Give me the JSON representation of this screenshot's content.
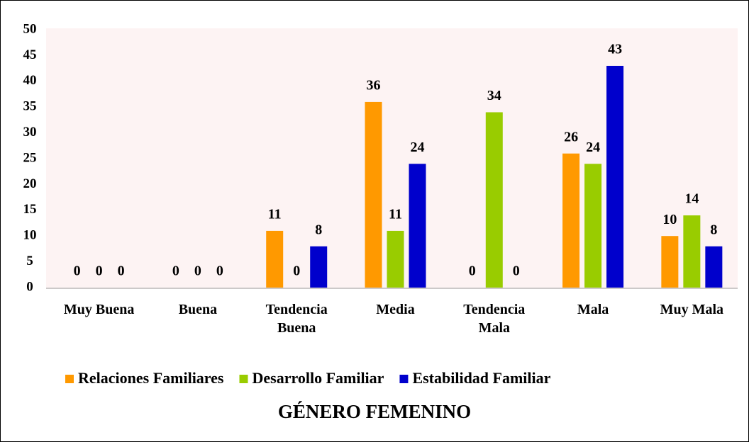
{
  "chart_data": {
    "type": "bar",
    "title": "GÉNERO FEMENINO",
    "categories": [
      "Muy Buena",
      "Buena",
      "Tendencia Buena",
      "Media",
      "Tendencia Mala",
      "Mala",
      "Muy Mala"
    ],
    "series": [
      {
        "name": "Relaciones Familiares",
        "color": "#ff9900",
        "values": [
          0,
          0,
          11,
          36,
          0,
          26,
          10
        ]
      },
      {
        "name": "Desarrollo Familiar",
        "color": "#99cc00",
        "values": [
          0,
          0,
          0,
          11,
          34,
          24,
          14
        ]
      },
      {
        "name": "Estabilidad Familiar",
        "color": "#0000cc",
        "values": [
          0,
          0,
          8,
          24,
          0,
          43,
          8
        ]
      }
    ],
    "ylim": [
      0,
      50
    ],
    "yticks": [
      0,
      5,
      10,
      15,
      20,
      25,
      30,
      35,
      40,
      45,
      50
    ],
    "grid": false,
    "legend": "bottom"
  }
}
